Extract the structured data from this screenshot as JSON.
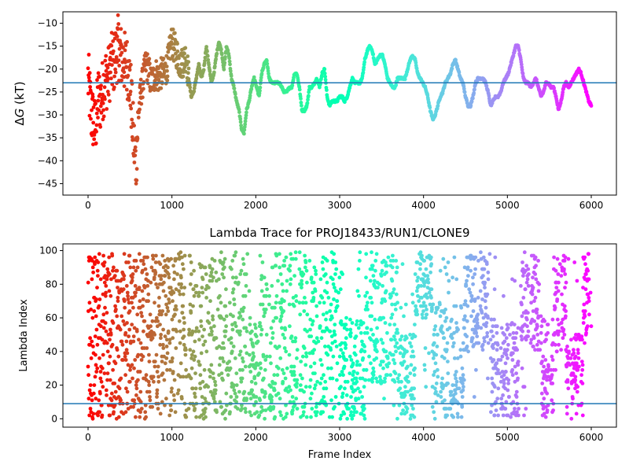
{
  "chart_data": [
    {
      "type": "scatter",
      "title": "",
      "xlabel": "",
      "ylabel": "ΔG (kT)",
      "ylabel_prefix": "Δ",
      "ylabel_var": "G",
      "ylabel_suffix": " (kT)",
      "xlim": [
        -300,
        6300
      ],
      "ylim": [
        -47.5,
        -7.5
      ],
      "x_ticks": [
        0,
        1000,
        2000,
        3000,
        4000,
        5000,
        6000
      ],
      "x_tick_labels": [
        "0",
        "1000",
        "2000",
        "3000",
        "4000",
        "5000",
        "6000"
      ],
      "y_ticks": [
        -45,
        -40,
        -35,
        -30,
        -25,
        -20,
        -15,
        -10
      ],
      "y_tick_labels": [
        "−45",
        "−40",
        "−35",
        "−30",
        "−25",
        "−20",
        "−15",
        "−10"
      ],
      "grid": false,
      "legend": "none",
      "colormap": "rainbow (red at frame 0 → violet at frame 6000)",
      "hline": -23,
      "hline_color": "#1f77b4",
      "n_frames": 6000,
      "series": [
        {
          "style": "noisy scatter",
          "x": [
            0,
            20,
            40,
            60,
            80,
            100,
            120,
            150,
            180,
            210,
            240,
            270,
            300,
            330,
            360,
            390,
            420,
            450,
            480,
            510,
            540,
            570,
            600,
            630,
            660,
            690,
            720,
            750,
            780,
            810,
            840,
            870,
            900,
            930,
            960,
            990,
            1020,
            1050,
            1080,
            1110,
            1140,
            1170,
            1200
          ],
          "y": [
            -22,
            -26,
            -30,
            -31,
            -33,
            -31,
            -26,
            -27,
            -24,
            -22,
            -22,
            -19,
            -19,
            -17,
            -15,
            -17,
            -18,
            -19,
            -20,
            -25,
            -35,
            -41,
            -30,
            -25,
            -22,
            -19,
            -20,
            -23,
            -22,
            -21,
            -22,
            -21,
            -21,
            -20,
            -18,
            -14,
            -15,
            -16,
            -18,
            -19,
            -18,
            -17,
            -22
          ]
        },
        {
          "style": "smooth trace",
          "x": [
            1200,
            1230,
            1260,
            1290,
            1320,
            1350,
            1380,
            1410,
            1440,
            1470,
            1500,
            1530,
            1560,
            1590,
            1620,
            1650,
            1680,
            1710,
            1740,
            1770,
            1800,
            1830,
            1860,
            1890,
            1920,
            1950,
            1980,
            2010,
            2040,
            2070,
            2100,
            2130,
            2160,
            2190,
            2220,
            2250,
            2280,
            2310,
            2340,
            2370,
            2400,
            2430,
            2460,
            2490,
            2520,
            2550,
            2580,
            2610,
            2640,
            2670,
            2700,
            2730,
            2760,
            2790,
            2820,
            2850,
            2880,
            2910,
            2940,
            2970,
            3000,
            3030,
            3060,
            3090,
            3120,
            3150,
            3180,
            3210,
            3240,
            3270,
            3300,
            3330,
            3360,
            3390,
            3420,
            3450,
            3480,
            3510,
            3540,
            3570,
            3600,
            3630,
            3660,
            3690,
            3720,
            3750,
            3780,
            3810,
            3840,
            3870,
            3900,
            3930,
            3960,
            3990,
            4020,
            4050,
            4080,
            4110,
            4140,
            4170,
            4200,
            4230,
            4260,
            4290,
            4320,
            4350,
            4380,
            4410,
            4440,
            4470,
            4500,
            4530,
            4560,
            4590,
            4620,
            4650,
            4680,
            4710,
            4740,
            4770,
            4800,
            4830,
            4860,
            4890,
            4920,
            4950,
            4980,
            5010,
            5040,
            5070,
            5100,
            5130,
            5160,
            5190,
            5220,
            5250,
            5280,
            5310,
            5340,
            5370,
            5400,
            5430,
            5460,
            5490,
            5520,
            5550,
            5580,
            5610,
            5640,
            5670,
            5700,
            5730,
            5760,
            5790,
            5820,
            5850,
            5880,
            5910,
            5940,
            5970,
            6000
          ],
          "y": [
            -22,
            -26,
            -25,
            -22,
            -19,
            -22,
            -20,
            -15,
            -19,
            -23,
            -21,
            -17,
            -14,
            -16,
            -20,
            -15,
            -17,
            -22,
            -24,
            -27,
            -29,
            -33,
            -34,
            -29,
            -27,
            -24,
            -22,
            -24,
            -26,
            -21,
            -19,
            -18,
            -22,
            -23,
            -23,
            -23,
            -23,
            -24,
            -25,
            -25,
            -24,
            -24,
            -21,
            -21,
            -24,
            -29,
            -29,
            -28,
            -24,
            -24,
            -23,
            -22,
            -24,
            -21,
            -20,
            -26,
            -28,
            -27,
            -27,
            -27,
            -26,
            -26,
            -27,
            -26,
            -24,
            -22,
            -23,
            -23,
            -23,
            -22,
            -18,
            -16,
            -15,
            -16,
            -19,
            -18,
            -17,
            -17,
            -19,
            -22,
            -23,
            -24,
            -24,
            -22,
            -22,
            -22,
            -22,
            -20,
            -18,
            -17,
            -18,
            -21,
            -22,
            -23,
            -24,
            -26,
            -29,
            -31,
            -30,
            -28,
            -26,
            -25,
            -23,
            -22,
            -21,
            -19,
            -18,
            -20,
            -22,
            -23,
            -26,
            -28,
            -28,
            -26,
            -23,
            -22,
            -22,
            -22,
            -23,
            -25,
            -28,
            -27,
            -26,
            -26,
            -25,
            -23,
            -22,
            -21,
            -19,
            -17,
            -15,
            -15,
            -18,
            -22,
            -23,
            -23,
            -24,
            -23,
            -22,
            -24,
            -26,
            -25,
            -23,
            -23,
            -24,
            -24,
            -26,
            -29,
            -27,
            -24,
            -23,
            -24,
            -23,
            -22,
            -21,
            -20,
            -21,
            -23,
            -25,
            -27,
            -28
          ]
        }
      ]
    },
    {
      "type": "scatter",
      "title": "Lambda Trace for PROJ18433/RUN1/CLONE9",
      "xlabel": "Frame Index",
      "ylabel": "Lambda Index",
      "xlim": [
        -300,
        6300
      ],
      "ylim": [
        -5,
        104
      ],
      "x_ticks": [
        0,
        1000,
        2000,
        3000,
        4000,
        5000,
        6000
      ],
      "x_tick_labels": [
        "0",
        "1000",
        "2000",
        "3000",
        "4000",
        "5000",
        "6000"
      ],
      "y_ticks": [
        0,
        20,
        40,
        60,
        80,
        100
      ],
      "y_tick_labels": [
        "0",
        "20",
        "40",
        "60",
        "80",
        "100"
      ],
      "grid": false,
      "legend": "none",
      "colormap": "rainbow (red at frame 0 → violet at frame 6000)",
      "hline": 9,
      "hline_color": "#1f77b4",
      "n_frames": 6000,
      "lambda_range": [
        0,
        99
      ],
      "dense_regions": [
        {
          "x": [
            0,
            1900
          ],
          "y": [
            0,
            99
          ]
        },
        {
          "x": [
            1900,
            2050
          ],
          "y": [
            0,
            60
          ]
        },
        {
          "x": [
            2050,
            3000
          ],
          "y": [
            0,
            99
          ]
        },
        {
          "x": [
            3000,
            3300
          ],
          "y": [
            0,
            60
          ]
        },
        {
          "x": [
            3300,
            3700
          ],
          "y": [
            20,
            99
          ]
        },
        {
          "x": [
            3700,
            3900
          ],
          "y": [
            0,
            50
          ]
        },
        {
          "x": [
            3900,
            4100
          ],
          "y": [
            60,
            99
          ]
        },
        {
          "x": [
            4100,
            4500
          ],
          "y": [
            0,
            70
          ]
        },
        {
          "x": [
            4500,
            4800
          ],
          "y": [
            40,
            99
          ]
        },
        {
          "x": [
            4800,
            5150
          ],
          "y": [
            0,
            60
          ]
        },
        {
          "x": [
            5150,
            5400
          ],
          "y": [
            40,
            99
          ]
        },
        {
          "x": [
            5400,
            5550
          ],
          "y": [
            0,
            60
          ]
        },
        {
          "x": [
            5550,
            5700
          ],
          "y": [
            40,
            99
          ]
        },
        {
          "x": [
            5700,
            5900
          ],
          "y": [
            0,
            50
          ]
        },
        {
          "x": [
            5900,
            6000
          ],
          "y": [
            50,
            99
          ]
        }
      ]
    }
  ]
}
